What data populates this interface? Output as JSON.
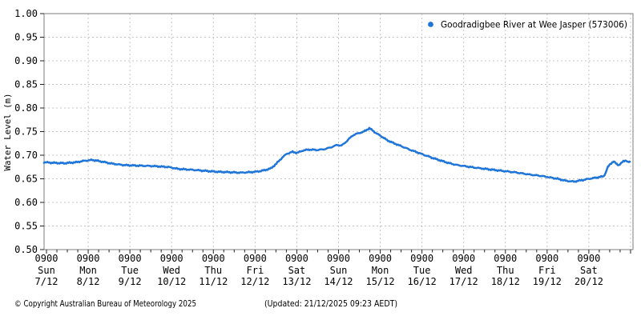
{
  "chart_data": {
    "type": "line",
    "title": "",
    "ylabel": "Water Level (m)",
    "grid": "dashed",
    "legend_position": "top-right",
    "x_origin": "days since Sun 7/12 0900",
    "x_range_days": [
      -0.06,
      14.06
    ],
    "y_range": [
      0.5,
      1.0
    ],
    "y_step": 0.05,
    "minor_tick_interval_days": 0.25,
    "y_ticks": [
      "1.00",
      "0.95",
      "0.90",
      "0.85",
      "0.80",
      "0.75",
      "0.70",
      "0.65",
      "0.60",
      "0.55",
      "0.50"
    ],
    "x_ticks": [
      {
        "time": "0900",
        "day": "Sun",
        "date": "7/12"
      },
      {
        "time": "0900",
        "day": "Mon",
        "date": "8/12"
      },
      {
        "time": "0900",
        "day": "Tue",
        "date": "9/12"
      },
      {
        "time": "0900",
        "day": "Wed",
        "date": "10/12"
      },
      {
        "time": "0900",
        "day": "Thu",
        "date": "11/12"
      },
      {
        "time": "0900",
        "day": "Fri",
        "date": "12/12"
      },
      {
        "time": "0900",
        "day": "Sat",
        "date": "13/12"
      },
      {
        "time": "0900",
        "day": "Sun",
        "date": "14/12"
      },
      {
        "time": "0900",
        "day": "Mon",
        "date": "15/12"
      },
      {
        "time": "0900",
        "day": "Tue",
        "date": "16/12"
      },
      {
        "time": "0900",
        "day": "Wed",
        "date": "17/12"
      },
      {
        "time": "0900",
        "day": "Thu",
        "date": "18/12"
      },
      {
        "time": "0900",
        "day": "Fri",
        "date": "19/12"
      },
      {
        "time": "0900",
        "day": "Sat",
        "date": "20/12"
      }
    ],
    "series": [
      {
        "name": "Goodradigbee River at Wee Jasper (573006)",
        "color": "#2076d8",
        "points": [
          [
            -0.06,
            0.685
          ],
          [
            0.13,
            0.684
          ],
          [
            0.42,
            0.683
          ],
          [
            0.71,
            0.685
          ],
          [
            0.9,
            0.688
          ],
          [
            1.1,
            0.69
          ],
          [
            1.29,
            0.687
          ],
          [
            1.58,
            0.682
          ],
          [
            1.86,
            0.679
          ],
          [
            2.15,
            0.678
          ],
          [
            2.54,
            0.677
          ],
          [
            2.92,
            0.675
          ],
          [
            3.15,
            0.671
          ],
          [
            3.5,
            0.669
          ],
          [
            3.78,
            0.667
          ],
          [
            4.07,
            0.665
          ],
          [
            4.36,
            0.664
          ],
          [
            4.65,
            0.663
          ],
          [
            4.88,
            0.664
          ],
          [
            5.03,
            0.665
          ],
          [
            5.22,
            0.668
          ],
          [
            5.38,
            0.672
          ],
          [
            5.51,
            0.682
          ],
          [
            5.65,
            0.695
          ],
          [
            5.76,
            0.703
          ],
          [
            5.9,
            0.707
          ],
          [
            6.01,
            0.705
          ],
          [
            6.15,
            0.71
          ],
          [
            6.3,
            0.712
          ],
          [
            6.49,
            0.711
          ],
          [
            6.68,
            0.713
          ],
          [
            6.86,
            0.718
          ],
          [
            6.97,
            0.722
          ],
          [
            7.07,
            0.72
          ],
          [
            7.2,
            0.73
          ],
          [
            7.34,
            0.742
          ],
          [
            7.49,
            0.747
          ],
          [
            7.59,
            0.749
          ],
          [
            7.66,
            0.753
          ],
          [
            7.74,
            0.757
          ],
          [
            7.84,
            0.751
          ],
          [
            7.91,
            0.746
          ],
          [
            8.01,
            0.741
          ],
          [
            8.16,
            0.732
          ],
          [
            8.31,
            0.726
          ],
          [
            8.51,
            0.719
          ],
          [
            8.7,
            0.712
          ],
          [
            8.89,
            0.706
          ],
          [
            9.01,
            0.702
          ],
          [
            9.26,
            0.694
          ],
          [
            9.47,
            0.688
          ],
          [
            9.66,
            0.683
          ],
          [
            9.85,
            0.679
          ],
          [
            10.01,
            0.677
          ],
          [
            10.24,
            0.674
          ],
          [
            10.52,
            0.671
          ],
          [
            10.81,
            0.668
          ],
          [
            11.0,
            0.666
          ],
          [
            11.29,
            0.663
          ],
          [
            11.58,
            0.659
          ],
          [
            11.87,
            0.656
          ],
          [
            12.0,
            0.654
          ],
          [
            12.25,
            0.65
          ],
          [
            12.44,
            0.646
          ],
          [
            12.64,
            0.644
          ],
          [
            12.83,
            0.647
          ],
          [
            13.0,
            0.65
          ],
          [
            13.15,
            0.652
          ],
          [
            13.27,
            0.654
          ],
          [
            13.35,
            0.655
          ],
          [
            13.4,
            0.662
          ],
          [
            13.44,
            0.672
          ],
          [
            13.5,
            0.68
          ],
          [
            13.56,
            0.685
          ],
          [
            13.6,
            0.687
          ],
          [
            13.65,
            0.682
          ],
          [
            13.71,
            0.679
          ],
          [
            13.77,
            0.683
          ],
          [
            13.83,
            0.687
          ],
          [
            13.89,
            0.689
          ],
          [
            13.94,
            0.686
          ],
          [
            13.98,
            0.685
          ]
        ]
      }
    ]
  },
  "legend": {
    "label": "Goodradigbee River at Wee Jasper (573006)",
    "marker": "dot",
    "marker_color": "#2076d8"
  },
  "footer": {
    "copyright": "© Copyright Australian Bureau of Meteorology 2025",
    "updated": "(Updated: 21/12/2025 09:23 AEDT)"
  },
  "colors": {
    "line": "#2076d8",
    "grid": "#c5c5c5",
    "frame": "#7d7d7d",
    "axis_tick": "#222222",
    "text": "#000000",
    "background": "#ffffff"
  }
}
